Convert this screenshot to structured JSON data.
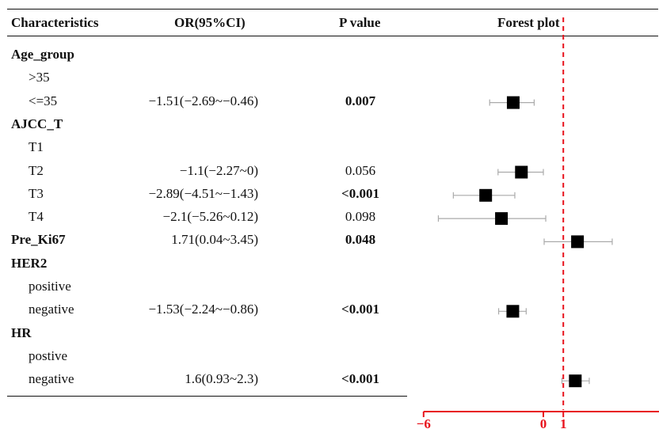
{
  "headers": {
    "characteristics": "Characteristics",
    "or": "OR(95%CI)",
    "p_value": "P value",
    "forest": "Forest plot"
  },
  "rows": [
    {
      "label": "Age_group",
      "group": true
    },
    {
      "label": ">35"
    },
    {
      "label": "<=35",
      "or_text": "−1.51(−2.69~−0.46)",
      "p": "0.007",
      "p_bold": true
    },
    {
      "label": "AJCC_T",
      "group": true
    },
    {
      "label": "T1"
    },
    {
      "label": "T2",
      "or_text": "−1.1(−2.27~0)",
      "p": "0.056",
      "p_bold": false
    },
    {
      "label": "T3",
      "or_text": "−2.89(−4.51~−1.43)",
      "p": "<0.001",
      "p_bold": true
    },
    {
      "label": "T4",
      "or_text": "−2.1(−5.26~0.12)",
      "p": "0.098",
      "p_bold": false
    },
    {
      "label": "Pre_Ki67",
      "group": true,
      "or_text": "1.71(0.04~3.45)",
      "p": "0.048",
      "p_bold": true
    },
    {
      "label": "HER2",
      "group": true
    },
    {
      "label": "positive"
    },
    {
      "label": "negative",
      "or_text": "−1.53(−2.24~−0.86)",
      "p": "<0.001",
      "p_bold": true
    },
    {
      "label": "HR",
      "group": true
    },
    {
      "label": "postive"
    },
    {
      "label": "negative",
      "or_text": "1.6(0.93~2.3)",
      "p": "<0.001",
      "p_bold": true
    }
  ],
  "chart_data": {
    "type": "forest",
    "title": "Forest plot",
    "reference_line": 1,
    "reference_color": "#e8121c",
    "axis_color": "#e8121c",
    "marker_color": "#000000",
    "whisker_color": "#aaaaaa",
    "x_ticks": [
      {
        "value": -6,
        "label": "−6"
      },
      {
        "value": 0,
        "label": "0"
      },
      {
        "value": 1,
        "label": "1"
      }
    ],
    "points": [
      {
        "row": 2,
        "label": "<=35",
        "estimate": -1.51,
        "lower": -2.69,
        "upper": -0.46
      },
      {
        "row": 5,
        "label": "T2",
        "estimate": -1.1,
        "lower": -2.27,
        "upper": 0
      },
      {
        "row": 6,
        "label": "T3",
        "estimate": -2.89,
        "lower": -4.51,
        "upper": -1.43
      },
      {
        "row": 7,
        "label": "T4",
        "estimate": -2.1,
        "lower": -5.26,
        "upper": 0.12
      },
      {
        "row": 8,
        "label": "Pre_Ki67",
        "estimate": 1.71,
        "lower": 0.04,
        "upper": 3.45
      },
      {
        "row": 11,
        "label": "HER2 negative",
        "estimate": -1.53,
        "lower": -2.24,
        "upper": -0.86
      },
      {
        "row": 14,
        "label": "HR negative",
        "estimate": 1.6,
        "lower": 0.93,
        "upper": 2.3
      }
    ]
  }
}
